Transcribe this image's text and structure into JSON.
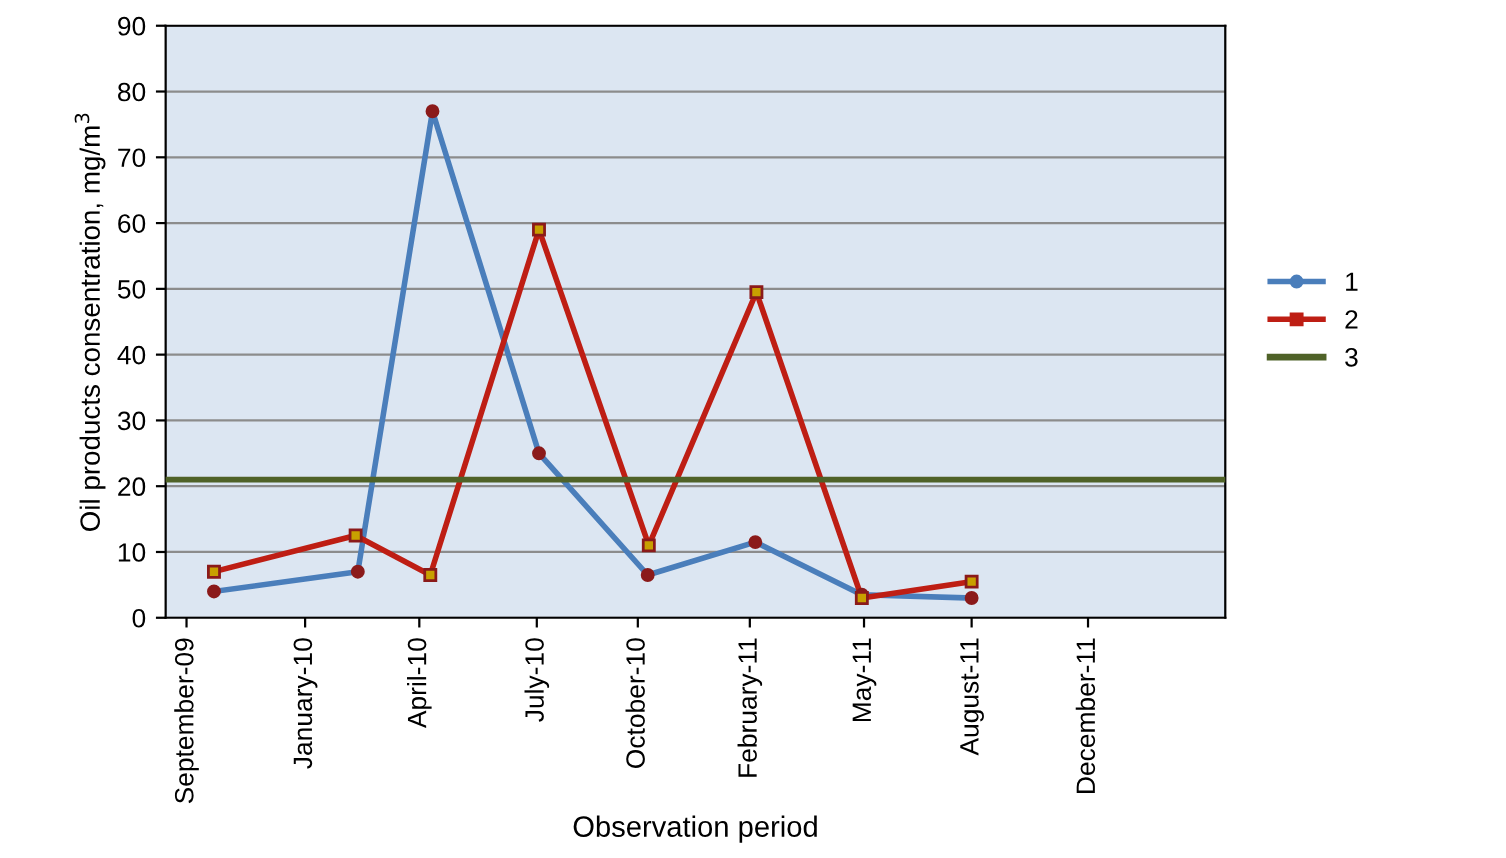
{
  "chart_data": {
    "type": "line",
    "xlabel": "Observation period",
    "ylabel": "Oil products consentration, mg/m$^{3}$",
    "ylim": [
      0,
      90
    ],
    "yticks": [
      0,
      10,
      20,
      30,
      40,
      50,
      60,
      70,
      80,
      90
    ],
    "xlim": [
      "2009-08-27",
      "2012-04-18"
    ],
    "xticks": [
      {
        "value": "2009-09-15",
        "label": "September-09"
      },
      {
        "value": "2010-01-01",
        "label": "January-10"
      },
      {
        "value": "2010-04-15",
        "label": "April-10"
      },
      {
        "value": "2010-07-31",
        "label": "July-10"
      },
      {
        "value": "2010-10-31",
        "label": "October-10"
      },
      {
        "value": "2011-02-10",
        "label": "February-11"
      },
      {
        "value": "2011-05-25",
        "label": "May-11"
      },
      {
        "value": "2011-08-31",
        "label": "August-11"
      },
      {
        "value": "2011-12-15",
        "label": "December-11"
      }
    ],
    "grid": "y",
    "legend": "right",
    "series": [
      {
        "name": "1",
        "color": "#4a7ebb",
        "marker": "circle",
        "x": [
          "2009-10-10",
          "2010-02-18",
          "2010-04-27",
          "2010-08-02",
          "2010-11-09",
          "2011-02-15",
          "2011-05-23",
          "2011-08-31"
        ],
        "values": [
          4,
          7,
          77,
          25,
          6.5,
          11.5,
          3.5,
          3
        ]
      },
      {
        "name": "2",
        "color": "#be1e14",
        "marker": "square",
        "x": [
          "2009-10-10",
          "2010-02-16",
          "2010-04-25",
          "2010-08-02",
          "2010-11-10",
          "2011-02-16",
          "2011-05-23",
          "2011-08-31"
        ],
        "values": [
          7,
          12.5,
          6.5,
          59,
          11,
          49.5,
          3,
          5.5
        ]
      },
      {
        "name": "3",
        "color": "#4f6228",
        "marker": "none",
        "x": [
          "2009-08-27",
          "2012-04-18"
        ],
        "values": [
          21,
          21
        ]
      }
    ]
  }
}
